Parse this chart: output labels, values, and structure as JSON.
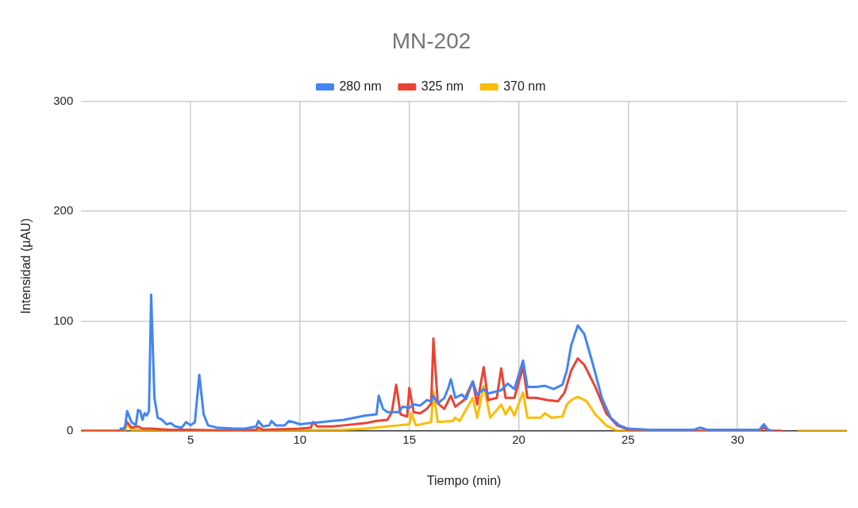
{
  "chart_data": {
    "type": "line",
    "title": "MN-202",
    "xlabel": "Tiempo (min)",
    "ylabel": "Intensidad (µAU)",
    "xlim": [
      0,
      35
    ],
    "xticks": [
      5,
      10,
      15,
      20,
      25,
      30
    ],
    "ylim": [
      0,
      300
    ],
    "yticks": [
      0,
      100,
      200,
      300
    ],
    "grid": true,
    "legend": "top",
    "marker": "none",
    "line_style": "solid",
    "series": [
      {
        "name": "280 nm",
        "color": "#4285f4",
        "x": [
          1.8,
          2.0,
          2.1,
          2.3,
          2.5,
          2.6,
          2.7,
          2.8,
          2.9,
          3.0,
          3.1,
          3.2,
          3.35,
          3.5,
          3.7,
          3.9,
          4.1,
          4.3,
          4.6,
          4.8,
          5.0,
          5.2,
          5.4,
          5.6,
          5.8,
          6.2,
          7.0,
          7.5,
          8.0,
          8.1,
          8.3,
          8.6,
          8.7,
          8.9,
          9.3,
          9.5,
          9.7,
          10.0,
          10.5,
          11,
          11.5,
          12,
          12.5,
          13,
          13.5,
          13.6,
          13.8,
          14,
          14.5,
          14.7,
          15.0,
          15.2,
          15.5,
          15.8,
          16.0,
          16.1,
          16.3,
          16.6,
          16.8,
          16.9,
          17.1,
          17.4,
          17.6,
          17.9,
          18.1,
          18.4,
          18.6,
          19.0,
          19.2,
          19.5,
          19.8,
          20.2,
          20.4,
          20.8,
          21.2,
          21.6,
          22.0,
          22.2,
          22.4,
          22.7,
          23.0,
          23.4,
          23.8,
          24.2,
          24.6,
          25,
          26,
          28,
          28.3,
          28.6,
          30,
          31,
          31.2,
          31.4,
          31.6
        ],
        "values": [
          2,
          2,
          18,
          8,
          5,
          19,
          18,
          10,
          16,
          14,
          18,
          124,
          30,
          12,
          10,
          6,
          7,
          4,
          3,
          8,
          5,
          8,
          51,
          15,
          5,
          3,
          2,
          2,
          4,
          9,
          4,
          5,
          9,
          5,
          5,
          9,
          8,
          6,
          7,
          8,
          9,
          10,
          12,
          14,
          15,
          32,
          20,
          17,
          17,
          22,
          21,
          24,
          23,
          28,
          27,
          32,
          25,
          30,
          40,
          47,
          30,
          33,
          29,
          45,
          33,
          38,
          34,
          36,
          37,
          43,
          38,
          64,
          40,
          40,
          41,
          38,
          42,
          55,
          78,
          96,
          88,
          60,
          30,
          12,
          5,
          2,
          1,
          1,
          3,
          1,
          1,
          1,
          6,
          1,
          0
        ]
      },
      {
        "name": "325 nm",
        "color": "#ea4335",
        "x": [
          0,
          1.9,
          2.1,
          2.3,
          2.6,
          2.8,
          3.2,
          4,
          5,
          6,
          8,
          8.1,
          8.3,
          10,
          10.5,
          10.6,
          10.8,
          11.5,
          12,
          13,
          13.5,
          14,
          14.2,
          14.4,
          14.6,
          14.9,
          15.0,
          15.2,
          15.5,
          15.8,
          16.0,
          16.1,
          16.3,
          16.6,
          16.9,
          17.1,
          17.5,
          17.9,
          18.1,
          18.4,
          18.6,
          19.0,
          19.2,
          19.4,
          19.8,
          20.2,
          20.4,
          20.8,
          21.3,
          21.8,
          22.1,
          22.4,
          22.7,
          23.0,
          23.5,
          24,
          24.5,
          25,
          26,
          31.0,
          31.2,
          31.4,
          32
        ],
        "values": [
          0,
          0,
          8,
          3,
          4,
          2,
          2,
          1,
          1,
          0.5,
          1,
          3,
          1,
          2,
          3,
          8,
          4,
          4,
          5,
          7,
          9,
          10,
          17,
          42,
          15,
          13,
          39,
          17,
          16,
          20,
          25,
          84,
          25,
          20,
          32,
          22,
          28,
          45,
          24,
          58,
          28,
          30,
          57,
          30,
          30,
          58,
          30,
          30,
          28,
          27,
          35,
          55,
          66,
          60,
          40,
          16,
          5,
          1,
          0,
          0,
          3,
          0,
          0
        ]
      },
      {
        "name": "370 nm",
        "color": "#fbbc04",
        "x": [
          0,
          2.0,
          2.1,
          2.3,
          3,
          5,
          10,
          12,
          13,
          14,
          14.5,
          15.0,
          15.1,
          15.3,
          16.0,
          16.1,
          16.3,
          17,
          17.1,
          17.3,
          17.9,
          18.1,
          18.4,
          18.7,
          19.2,
          19.4,
          19.6,
          19.8,
          20.2,
          20.4,
          21,
          21.2,
          21.5,
          22,
          22.2,
          22.4,
          22.7,
          23.1,
          23.5,
          24,
          24.5,
          31,
          31.2,
          31.4,
          31.5,
          32.0,
          32.8,
          35
        ],
        "values": [
          0,
          0,
          6,
          1,
          1,
          0,
          0.5,
          1,
          2,
          4,
          5,
          6,
          16,
          5,
          8,
          36,
          8,
          9,
          12,
          9,
          30,
          12,
          41,
          12,
          24,
          15,
          22,
          14,
          35,
          12,
          12,
          16,
          12,
          13,
          24,
          28,
          31,
          27,
          15,
          5,
          0,
          0,
          3,
          0,
          0,
          null,
          0,
          0
        ]
      }
    ]
  }
}
